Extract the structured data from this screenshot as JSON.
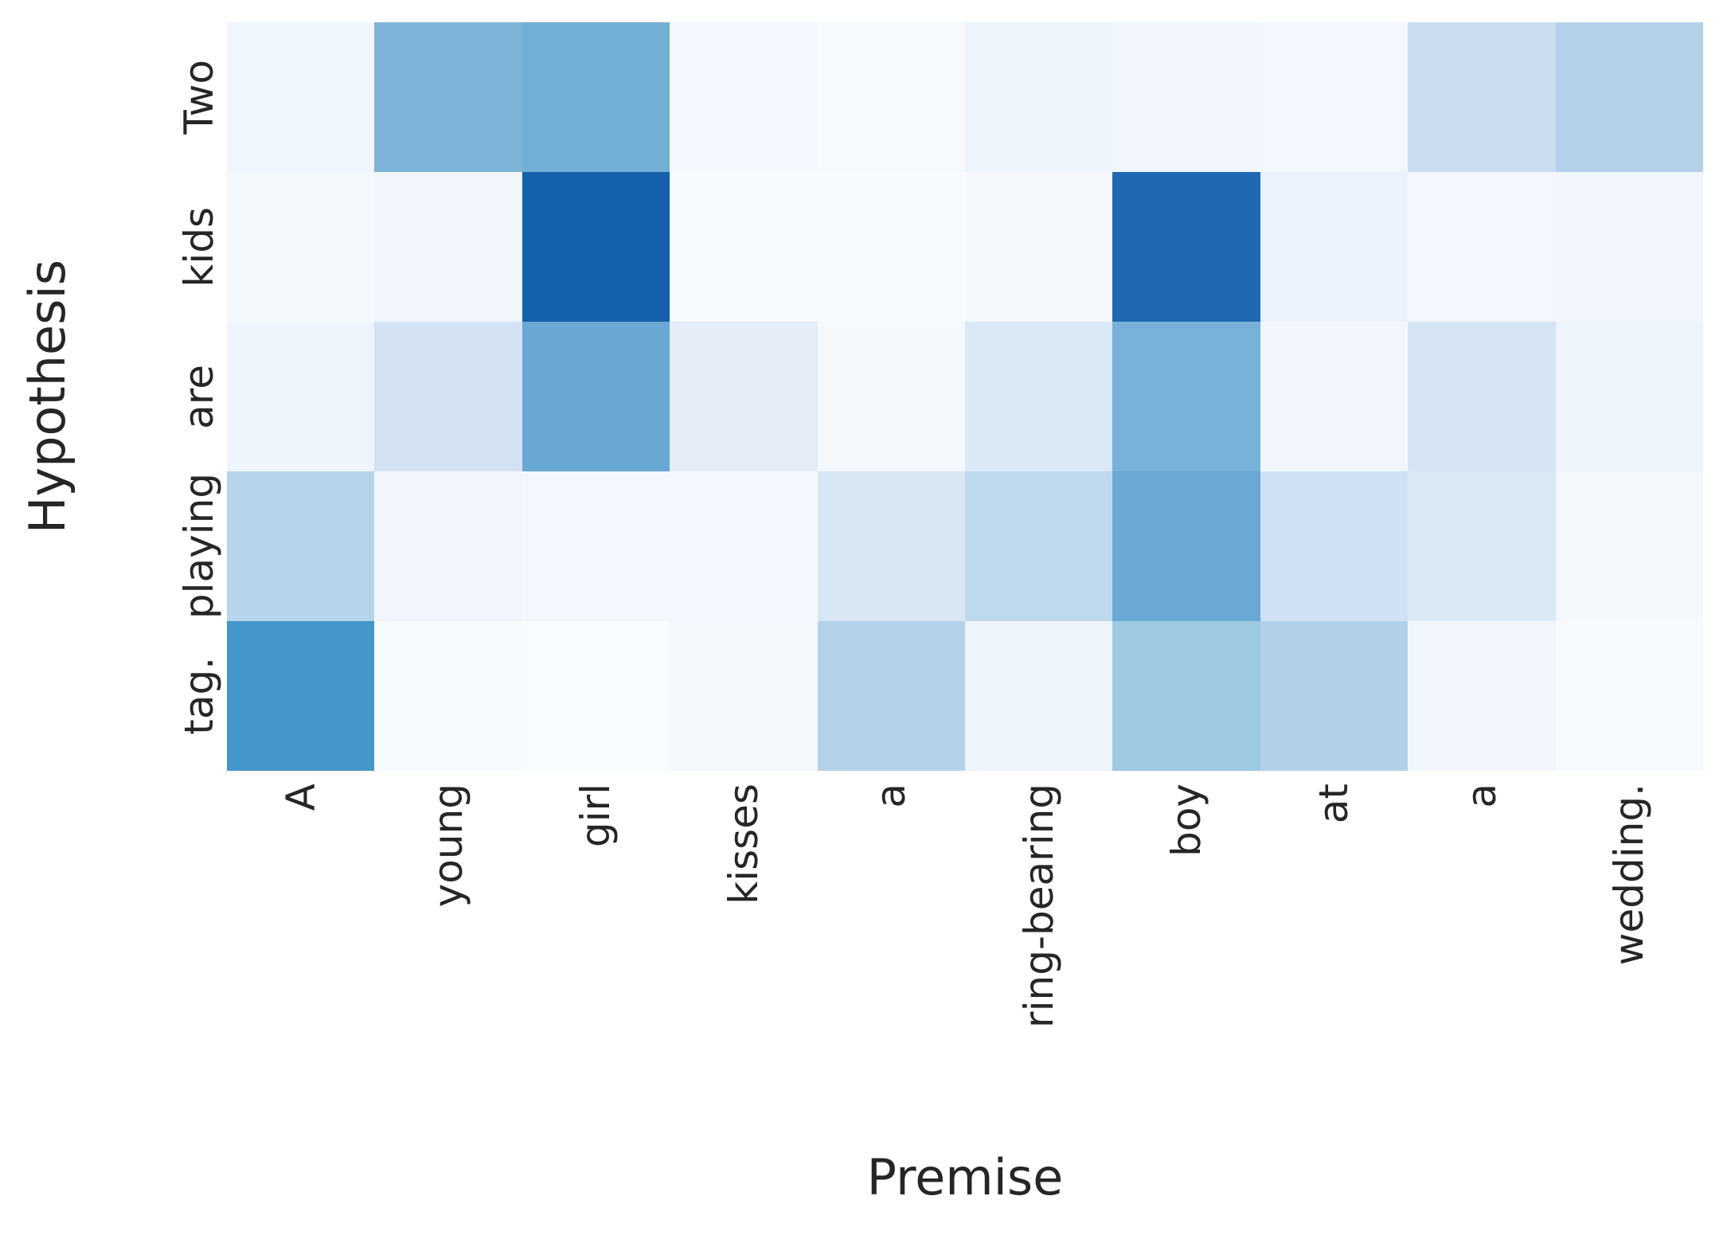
{
  "figure": {
    "background_color": "#ffffff",
    "text_color": "#262626"
  },
  "chart_data": {
    "type": "heatmap",
    "title": "",
    "xlabel": "Premise",
    "ylabel": "Hypothesis",
    "x_tick_labels": [
      "A",
      "young",
      "girl",
      "kisses",
      "a",
      "ring-bearing",
      "boy",
      "at",
      "a",
      "wedding."
    ],
    "y_tick_labels": [
      "Two",
      "kids",
      "are",
      "playing",
      "tag."
    ],
    "premise_sentence": "A young girl kisses a ring-bearing boy at a wedding.",
    "hypothesis_sentence": "Two kids are playing tag.",
    "colormap": "Blues",
    "legend_position": "none",
    "grid": false,
    "tick_rotation_degrees": 90,
    "value_range_estimate": [
      0,
      1
    ],
    "values_note": "Values estimated from Blues colormap intensity; no numeric annotations are printed in the figure.",
    "series": [
      {
        "name": "Two",
        "values": [
          0.04,
          0.45,
          0.48,
          0.03,
          0.02,
          0.05,
          0.04,
          0.03,
          0.22,
          0.31
        ]
      },
      {
        "name": "kids",
        "values": [
          0.03,
          0.04,
          0.81,
          0.02,
          0.01,
          0.02,
          0.77,
          0.07,
          0.03,
          0.04
        ]
      },
      {
        "name": "are",
        "values": [
          0.05,
          0.17,
          0.53,
          0.1,
          0.02,
          0.14,
          0.47,
          0.03,
          0.16,
          0.05
        ]
      },
      {
        "name": "playing",
        "values": [
          0.3,
          0.04,
          0.03,
          0.03,
          0.15,
          0.28,
          0.52,
          0.2,
          0.14,
          0.02
        ]
      },
      {
        "name": "tag.",
        "values": [
          0.63,
          0.01,
          0.01,
          0.02,
          0.31,
          0.05,
          0.39,
          0.32,
          0.04,
          0.01
        ]
      }
    ],
    "cell_colors": [
      [
        "#f0f6fd",
        "#7eb4d8",
        "#73aed5",
        "#f3f8fe",
        "#f6fafe",
        "#edf4fc",
        "#f1f6fd",
        "#f3f8fe",
        "#cbdcf0",
        "#b3d2e9"
      ],
      [
        "#f4f9fe",
        "#f1f6fd",
        "#1561ab",
        "#f7fafe",
        "#f8fbfe",
        "#f5f9fe",
        "#2069b2",
        "#ebf2fb",
        "#f4f8fe",
        "#f2f7fd"
      ],
      [
        "#eef5fc",
        "#d3e3f3",
        "#68a8d3",
        "#e4edf8",
        "#f4f9fe",
        "#dbe8f6",
        "#79b2d8",
        "#f2f7fd",
        "#d5e5f4",
        "#eef5fc"
      ],
      [
        "#b7d4ea",
        "#f1f6fd",
        "#f3f8fe",
        "#f3f8fe",
        "#d9e7f5",
        "#bed8ec",
        "#69a9d4",
        "#cfe1f2",
        "#dbe9f6",
        "#f5f9fe"
      ],
      [
        "#4495c9",
        "#f7fafe",
        "#f8fbff",
        "#f4f8fd",
        "#b4d2e9",
        "#eef4fb",
        "#9dc9e2",
        "#b1d1e8",
        "#f0f6fc",
        "#f6f9fe"
      ]
    ]
  }
}
